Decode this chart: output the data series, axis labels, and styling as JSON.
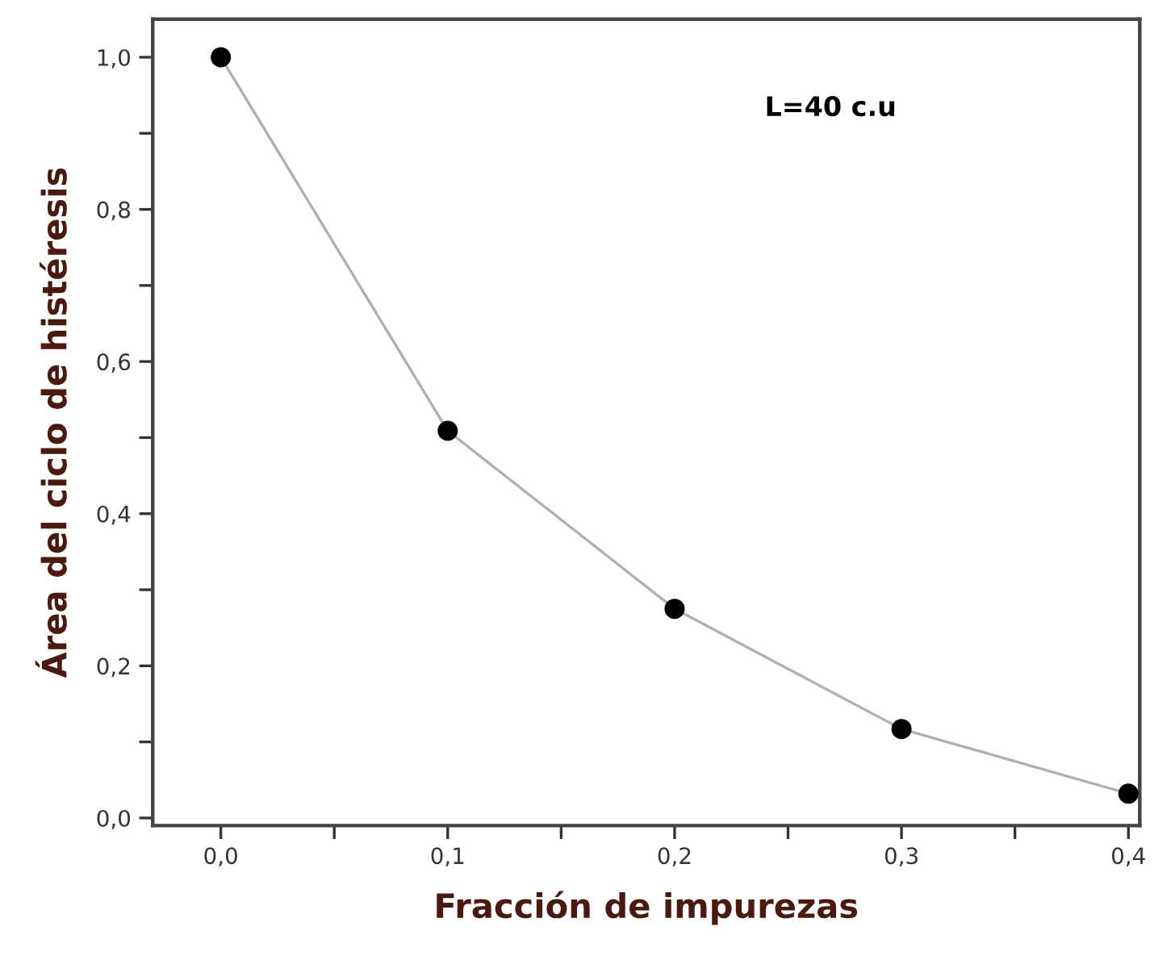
{
  "chart_data": {
    "type": "line",
    "xlabel": "Fracción de impurezas",
    "ylabel": "Área del ciclo de histéresis",
    "annotations": [
      "L=40 c.u"
    ],
    "x": [
      0.0,
      0.1,
      0.2,
      0.3,
      0.4
    ],
    "series": [
      {
        "color": "#b0b0b0",
        "values": [
          1.0,
          0.509,
          0.275,
          0.117,
          0.032
        ]
      }
    ],
    "marker": "circle",
    "line_style": "solid",
    "xlim": [
      -0.03,
      0.405
    ],
    "ylim": [
      -0.01,
      1.05
    ],
    "xticks": [
      {
        "value": 0.0,
        "label": "0,0"
      },
      {
        "value": 0.05,
        "label": null
      },
      {
        "value": 0.1,
        "label": "0,1"
      },
      {
        "value": 0.15,
        "label": null
      },
      {
        "value": 0.2,
        "label": "0,2"
      },
      {
        "value": 0.25,
        "label": null
      },
      {
        "value": 0.3,
        "label": "0,3"
      },
      {
        "value": 0.35,
        "label": null
      },
      {
        "value": 0.4,
        "label": "0,4"
      }
    ],
    "yticks": [
      {
        "value": 0.0,
        "label": "0,0"
      },
      {
        "value": 0.1,
        "label": null
      },
      {
        "value": 0.2,
        "label": "0,2"
      },
      {
        "value": 0.3,
        "label": null
      },
      {
        "value": 0.4,
        "label": "0,4"
      },
      {
        "value": 0.5,
        "label": null
      },
      {
        "value": 0.6,
        "label": "0,6"
      },
      {
        "value": 0.7,
        "label": null
      },
      {
        "value": 0.8,
        "label": "0,8"
      },
      {
        "value": 0.9,
        "label": null
      },
      {
        "value": 1.0,
        "label": "1,0"
      }
    ],
    "grid": false,
    "legend": false
  }
}
